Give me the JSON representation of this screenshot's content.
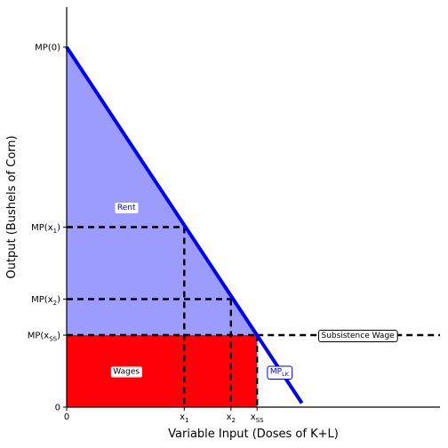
{
  "chart_data": {
    "type": "area",
    "xlabel": "Variable Input (Doses of K+L)",
    "ylabel": "Output (Bushels of Corn)",
    "xlim": [
      0,
      10
    ],
    "ylim": [
      0,
      10
    ],
    "mp_line": {
      "x": [
        0,
        6.3
      ],
      "y": [
        9,
        0.1
      ],
      "color": "#0000ff"
    },
    "points": {
      "x1": [
        3.15,
        4.5
      ],
      "x2": [
        4.4,
        2.7
      ],
      "xss": [
        5.1,
        1.8
      ]
    },
    "subsistence_wage": 1.8,
    "regions": {
      "rent_color": "#9c9cff",
      "wages_color": "#ff0008"
    },
    "x_ticks": [
      {
        "value": 0,
        "main": "0",
        "sub": ""
      },
      {
        "value": 3.15,
        "main": "x",
        "sub": "1"
      },
      {
        "value": 4.4,
        "main": "x",
        "sub": "2"
      },
      {
        "value": 5.1,
        "main": "x",
        "sub": "SS"
      }
    ],
    "y_ticks": [
      {
        "value": 9,
        "main": "MP(0)",
        "sub": ""
      },
      {
        "value": 4.5,
        "main": "MP(x",
        "sub": "1",
        "close": ")"
      },
      {
        "value": 2.7,
        "main": "MP(x",
        "sub": "2",
        "close": ")"
      },
      {
        "value": 1.8,
        "main": "MP(x",
        "sub": "SS",
        "close": ")"
      },
      {
        "value": 0,
        "main": "0",
        "sub": ""
      }
    ],
    "labels": {
      "rent": {
        "text": "Rent",
        "x": 1.6,
        "y": 5.0
      },
      "wages": {
        "text": "Wages",
        "x": 1.6,
        "y": 0.9
      },
      "subsistence": {
        "text": "Subsistence Wage",
        "x": 7.8,
        "y": 1.8
      },
      "mp": {
        "main": "MP",
        "sub": "LK",
        "x": 5.7,
        "y": 0.9
      }
    }
  }
}
